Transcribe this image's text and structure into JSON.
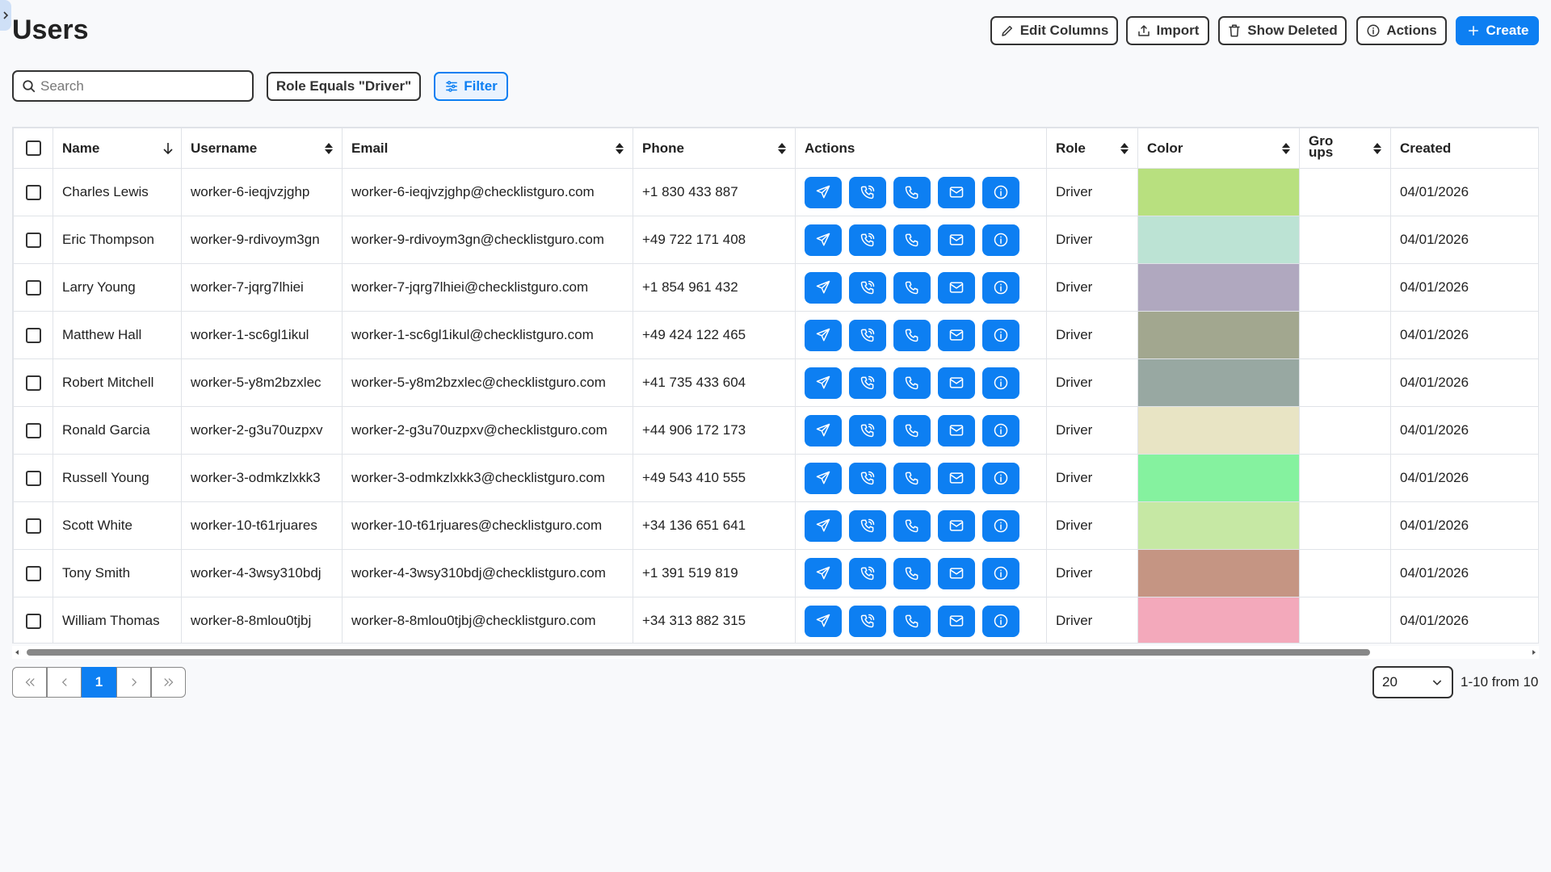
{
  "header": {
    "title": "Users",
    "buttons": [
      "Edit Columns",
      "Import",
      "Show Deleted",
      "Actions",
      "Create"
    ]
  },
  "toolbar": {
    "search_placeholder": "Search",
    "filter_chip": "Role Equals \"Driver\"",
    "filter_button": "Filter"
  },
  "table": {
    "columns": [
      "Name",
      "Username",
      "Email",
      "Phone",
      "Actions",
      "Role",
      "Color",
      "Groups",
      "Created"
    ],
    "rows": [
      {
        "name": "Charles Lewis",
        "username": "worker-6-ieqjvzjghp",
        "email": "worker-6-ieqjvzjghp@checklistguro.com",
        "phone": "+1 830 433 887",
        "role": "Driver",
        "color": "#b8e07f",
        "created": "04/01/2026"
      },
      {
        "name": "Eric Thompson",
        "username": "worker-9-rdivoym3gn",
        "email": "worker-9-rdivoym3gn@checklistguro.com",
        "phone": "+49 722 171 408",
        "role": "Driver",
        "color": "#bce3d4",
        "created": "04/01/2026"
      },
      {
        "name": "Larry Young",
        "username": "worker-7-jqrg7lhiei",
        "email": "worker-7-jqrg7lhiei@checklistguro.com",
        "phone": "+1 854 961 432",
        "role": "Driver",
        "color": "#b0a8bf",
        "created": "04/01/2026"
      },
      {
        "name": "Matthew Hall",
        "username": "worker-1-sc6gl1ikul",
        "email": "worker-1-sc6gl1ikul@checklistguro.com",
        "phone": "+49 424 122 465",
        "role": "Driver",
        "color": "#a2a78f",
        "created": "04/01/2026"
      },
      {
        "name": "Robert Mitchell",
        "username": "worker-5-y8m2bzxlec",
        "email": "worker-5-y8m2bzxlec@checklistguro.com",
        "phone": "+41 735 433 604",
        "role": "Driver",
        "color": "#98a8a2",
        "created": "04/01/2026"
      },
      {
        "name": "Ronald Garcia",
        "username": "worker-2-g3u70uzpxv",
        "email": "worker-2-g3u70uzpxv@checklistguro.com",
        "phone": "+44 906 172 173",
        "role": "Driver",
        "color": "#e8e4c4",
        "created": "04/01/2026"
      },
      {
        "name": "Russell Young",
        "username": "worker-3-odmkzlxkk3",
        "email": "worker-3-odmkzlxkk3@checklistguro.com",
        "phone": "+49 543 410 555",
        "role": "Driver",
        "color": "#85f29f",
        "created": "04/01/2026"
      },
      {
        "name": "Scott White",
        "username": "worker-10-t61rjuares",
        "email": "worker-10-t61rjuares@checklistguro.com",
        "phone": "+34 136 651 641",
        "role": "Driver",
        "color": "#c6e8a4",
        "created": "04/01/2026"
      },
      {
        "name": "Tony Smith",
        "username": "worker-4-3wsy310bdj",
        "email": "worker-4-3wsy310bdj@checklistguro.com",
        "phone": "+1 391 519 819",
        "role": "Driver",
        "color": "#c59583",
        "created": "04/01/2026"
      },
      {
        "name": "William Thomas",
        "username": "worker-8-8mlou0tjbj",
        "email": "worker-8-8mlou0tjbj@checklistguro.com",
        "phone": "+34 313 882 315",
        "role": "Driver",
        "color": "#f3a9bb",
        "created": "04/01/2026"
      }
    ]
  },
  "pagination": {
    "current_page": "1",
    "page_size": "20",
    "summary": "1-10 from 10"
  }
}
